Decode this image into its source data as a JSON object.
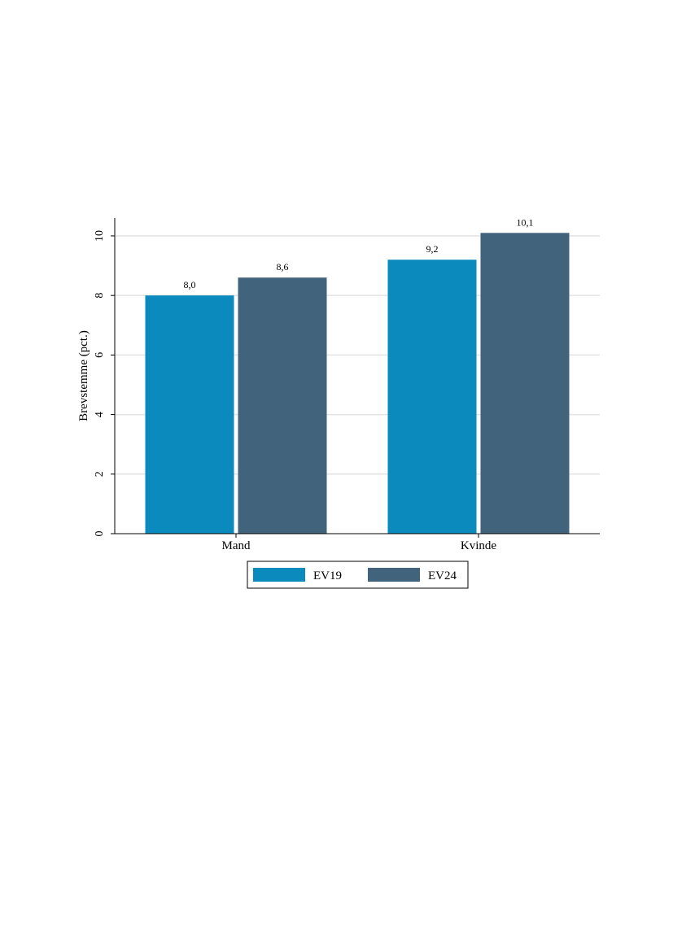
{
  "chart_data": {
    "type": "bar",
    "categories": [
      "Mand",
      "Kvinde"
    ],
    "series": [
      {
        "name": "EV19",
        "values": [
          8.0,
          9.2
        ],
        "labels": [
          "8,0",
          "9,2"
        ]
      },
      {
        "name": "EV24",
        "values": [
          8.6,
          10.1
        ],
        "labels": [
          "8,6",
          "10,1"
        ]
      }
    ],
    "title": "",
    "xlabel": "",
    "ylabel": "Brevstemme (pct.)",
    "ylim": [
      0,
      10.6
    ],
    "yticks": [
      0,
      2,
      4,
      6,
      8,
      10
    ],
    "ytick_labels": [
      "0",
      "2",
      "4",
      "6",
      "8",
      "10"
    ],
    "grid": true,
    "legend_position": "bottom",
    "colors": {
      "EV19": "#0b8abd",
      "EV24": "#41637c",
      "grid": "#e3e3e3",
      "axis": "#000000"
    }
  }
}
